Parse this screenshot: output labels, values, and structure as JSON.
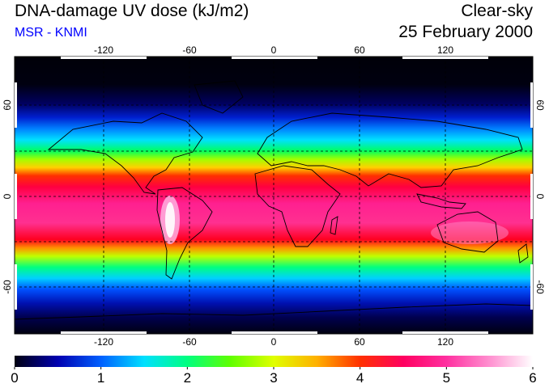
{
  "header": {
    "title": "DNA-damage UV dose (kJ/m2)",
    "subtitle": "MSR - KNMI",
    "condition": "Clear-sky",
    "date": "25 February 2000"
  },
  "map": {
    "lon_ticks": [
      "-120",
      "-60",
      "0",
      "60",
      "120"
    ],
    "lat_ticks_left": [
      "60",
      "0",
      "-60"
    ],
    "lat_ticks_right": [
      "60",
      "0",
      "-60"
    ],
    "gridlines": true,
    "projection": "equirectangular"
  },
  "colorbar": {
    "min": 0,
    "max": 6,
    "tick_labels": [
      "0",
      "1",
      "2",
      "3",
      "4",
      "5",
      "6"
    ],
    "colors": [
      "#000010",
      "#0000b0",
      "#0060ff",
      "#00e0ff",
      "#00ff80",
      "#60ff00",
      "#e0ff00",
      "#ffb000",
      "#ff3000",
      "#ff0060",
      "#ff30a0",
      "#ff90d0",
      "#ffffff"
    ]
  }
}
